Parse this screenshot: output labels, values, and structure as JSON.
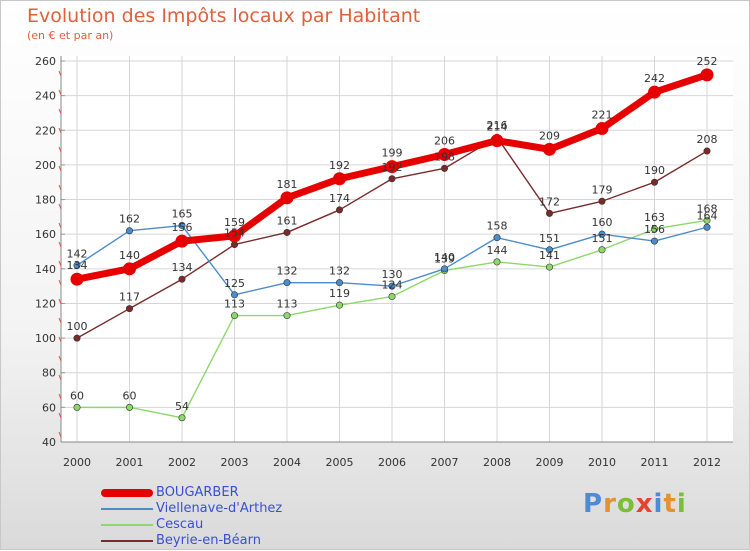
{
  "title": "Evolution des Impôts locaux par Habitant",
  "subtitle": "(en € et par an)",
  "logo": {
    "letters": [
      "P",
      "r",
      "o",
      "x",
      "i",
      "t",
      "i"
    ],
    "colors": [
      "#4f8ad6",
      "#e5922e",
      "#7bbf38",
      "#e5432e",
      "#4f8ad6",
      "#e5922e",
      "#7bbf38"
    ]
  },
  "chart_data": {
    "type": "line",
    "title": "Evolution des Impôts locaux par Habitant",
    "subtitle": "(en € et par an)",
    "xlabel": "",
    "ylabel": "",
    "ylim": [
      40,
      260
    ],
    "yticks": [
      40,
      60,
      80,
      100,
      120,
      140,
      160,
      180,
      200,
      220,
      240,
      260
    ],
    "grid": true,
    "legend_position": "bottom-left",
    "categories": [
      "2000",
      "2001",
      "2002",
      "2003",
      "2004",
      "2005",
      "2006",
      "2007",
      "2008",
      "2009",
      "2010",
      "2011",
      "2012"
    ],
    "series": [
      {
        "name": "BOUGARBER",
        "color": "#e60000",
        "values": [
          134,
          140,
          156,
          159,
          181,
          192,
          199,
          206,
          214,
          209,
          221,
          242,
          252
        ]
      },
      {
        "name": "Viellenave-d'Arthez",
        "color": "#4b8ccd",
        "values": [
          142,
          162,
          165,
          125,
          132,
          132,
          130,
          140,
          158,
          151,
          160,
          156,
          164
        ]
      },
      {
        "name": "Cescau",
        "color": "#8cd86a",
        "values": [
          60,
          60,
          54,
          113,
          113,
          119,
          124,
          139,
          144,
          141,
          151,
          163,
          168
        ]
      },
      {
        "name": "Beyrie-en-Béarn",
        "color": "#7a2a2a",
        "values": [
          100,
          117,
          134,
          154,
          161,
          174,
          192,
          198,
          216,
          172,
          179,
          190,
          208
        ]
      }
    ]
  }
}
